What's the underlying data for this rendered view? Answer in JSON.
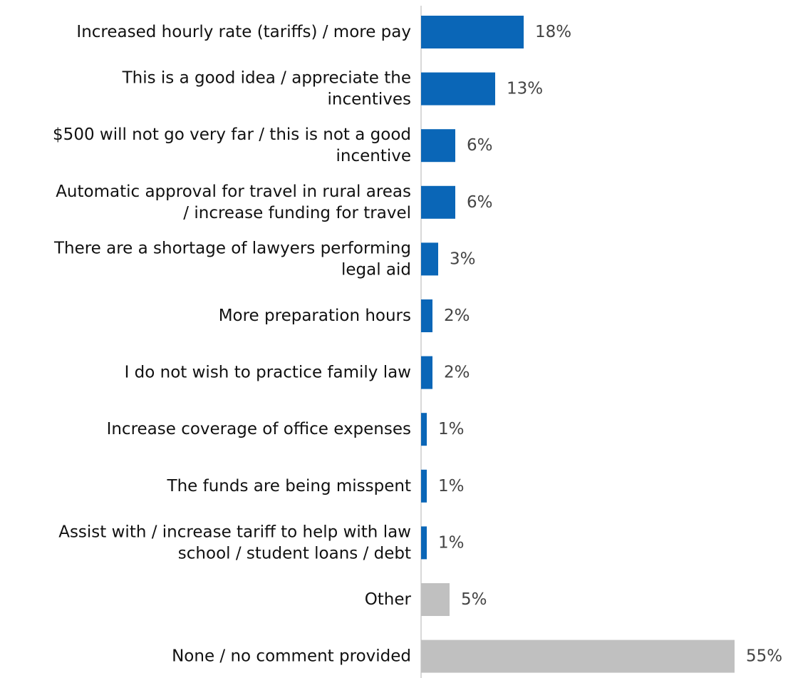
{
  "chart_data": {
    "type": "bar",
    "orientation": "horizontal",
    "title": "",
    "xlabel": "",
    "ylabel": "",
    "xlim": [
      0,
      55
    ],
    "grid": false,
    "legend": "none",
    "value_suffix": "%",
    "categories": [
      "Increased hourly rate (tariffs) / more pay",
      "This is a good idea / appreciate the incentives",
      "$500 will not go very far / this is not a good incentive",
      "Automatic approval for travel in rural areas / increase funding for travel",
      "There are a shortage of lawyers performing legal aid",
      "More preparation hours",
      "I do not wish to practice family law",
      "Increase coverage of office expenses",
      "The funds are being misspent",
      "Assist with / increase tariff to help with law school / student loans / debt",
      "Other",
      "None / no comment provided"
    ],
    "category_lines": [
      [
        "Increased hourly rate (tariffs) / more pay"
      ],
      [
        "This is a good idea / appreciate the",
        "incentives"
      ],
      [
        "$500 will not go very far / this is not a good",
        "incentive"
      ],
      [
        "Automatic approval for travel in rural areas",
        "/ increase funding for travel"
      ],
      [
        "There are a shortage of lawyers performing",
        "legal aid"
      ],
      [
        "More preparation hours"
      ],
      [
        "I do not wish to practice family law"
      ],
      [
        "Increase coverage of office expenses"
      ],
      [
        "The funds are being misspent"
      ],
      [
        "Assist with / increase tariff to help with law",
        "school / student loans / debt"
      ],
      [
        "Other"
      ],
      [
        "None / no comment provided"
      ]
    ],
    "values": [
      18,
      13,
      6,
      6,
      3,
      2,
      2,
      1,
      1,
      1,
      5,
      55
    ],
    "value_labels": [
      "18%",
      "13%",
      "6%",
      "6%",
      "3%",
      "2%",
      "2%",
      "1%",
      "1%",
      "1%",
      "5%",
      "55%"
    ],
    "bar_colors": [
      "#0a66b7",
      "#0a66b7",
      "#0a66b7",
      "#0a66b7",
      "#0a66b7",
      "#0a66b7",
      "#0a66b7",
      "#0a66b7",
      "#0a66b7",
      "#0a66b7",
      "#c0c0c0",
      "#c0c0c0"
    ],
    "axis_color": "#d9d9d9",
    "label_color": "#111111",
    "value_label_color": "#444444"
  }
}
